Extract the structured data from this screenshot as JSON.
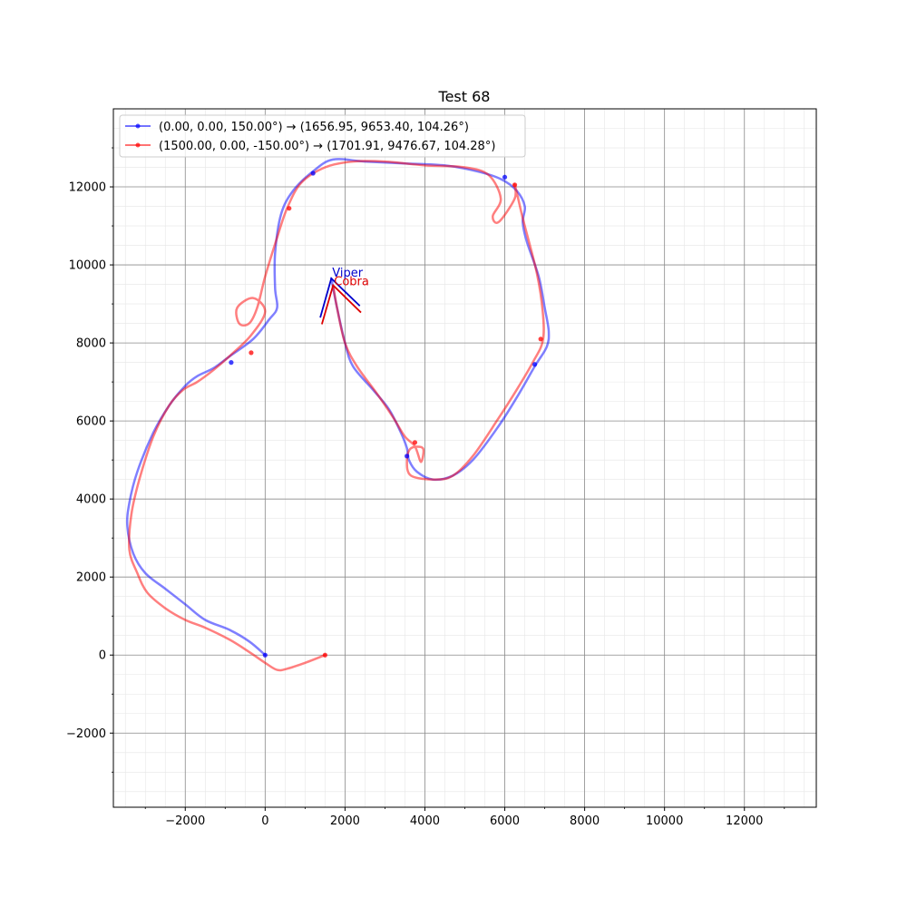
{
  "chart_data": {
    "type": "line",
    "title": "Test 68",
    "xlabel": "",
    "ylabel": "",
    "xlim": [
      -3800,
      13800
    ],
    "ylim": [
      -3900,
      14000
    ],
    "xticks": [
      -2000,
      0,
      2000,
      4000,
      6000,
      8000,
      10000,
      12000
    ],
    "yticks": [
      -2000,
      0,
      2000,
      4000,
      6000,
      8000,
      10000,
      12000
    ],
    "grid": true,
    "legend_position": "top-left",
    "series": [
      {
        "name": "(0.00, 0.00, 150.00°) → (1656.95, 9653.40, 104.26°)",
        "color": "#0000ff",
        "x": [
          0,
          -400,
          -900,
          -1500,
          -2000,
          -2500,
          -3000,
          -3300,
          -3450,
          -3400,
          -3200,
          -2800,
          -2400,
          -2000,
          -1700,
          -1300,
          -900,
          -300,
          100,
          300,
          250,
          250,
          400,
          700,
          1200,
          1700,
          2500,
          3500,
          4500,
          5300,
          5900,
          6300,
          6500,
          6450,
          6550,
          6850,
          7000,
          7100,
          7050,
          6750,
          6300,
          5800,
          5200,
          4700,
          4200,
          3800,
          3600,
          3550,
          3400,
          3100,
          2700,
          2200,
          2000,
          1800,
          1656.95
        ],
        "y": [
          0,
          350,
          650,
          900,
          1300,
          1700,
          2100,
          2600,
          3300,
          3900,
          4700,
          5700,
          6400,
          6900,
          7150,
          7350,
          7650,
          8100,
          8600,
          8900,
          9400,
          10300,
          11300,
          11900,
          12400,
          12700,
          12650,
          12600,
          12550,
          12400,
          12200,
          11900,
          11500,
          11100,
          10600,
          9700,
          8900,
          8300,
          7900,
          7400,
          6600,
          5800,
          5000,
          4600,
          4500,
          4700,
          5000,
          5300,
          5700,
          6300,
          6800,
          7400,
          8000,
          8900,
          9653.4
        ],
        "markers_x": [
          0,
          -850,
          1200,
          6000,
          6750,
          3550
        ],
        "markers_y": [
          0,
          7500,
          12350,
          12250,
          7450,
          5100
        ]
      },
      {
        "name": "(1500.00, 0.00, -150.00°) → (1701.91, 9476.67, 104.28°)",
        "color": "#ff0000",
        "x": [
          1500,
          1000,
          550,
          300,
          0,
          -400,
          -900,
          -1500,
          -2000,
          -2500,
          -2950,
          -3200,
          -3400,
          -3350,
          -3150,
          -2800,
          -2400,
          -2050,
          -1700,
          -1300,
          -850,
          -350,
          0,
          -300,
          -700,
          -650,
          -400,
          -200,
          0,
          300,
          550,
          900,
          1500,
          2200,
          3000,
          4000,
          5000,
          5600,
          5900,
          5700,
          5850,
          6250,
          6250,
          6450,
          6800,
          6950,
          6950,
          6700,
          6300,
          5800,
          5200,
          4700,
          4250,
          3650,
          3550,
          3650,
          3950,
          3900,
          3750,
          3500,
          3200,
          2800,
          2300,
          2000,
          1800,
          1701.91
        ],
        "y": [
          0,
          -200,
          -350,
          -380,
          -200,
          80,
          400,
          700,
          900,
          1200,
          1600,
          2100,
          2700,
          3600,
          4500,
          5600,
          6400,
          6800,
          7000,
          7300,
          7700,
          8200,
          8800,
          9150,
          8900,
          8500,
          8500,
          8900,
          9700,
          10700,
          11450,
          12100,
          12500,
          12650,
          12650,
          12550,
          12500,
          12300,
          11700,
          11250,
          11100,
          11700,
          12050,
          11200,
          9800,
          8800,
          8050,
          7500,
          6800,
          6000,
          5100,
          4600,
          4500,
          4600,
          5000,
          5300,
          5300,
          4950,
          5350,
          5600,
          6100,
          6700,
          7400,
          8000,
          8900,
          9476.67
        ],
        "markers_x": [
          1500,
          -350,
          600,
          6250,
          6900,
          3750
        ],
        "markers_y": [
          0,
          7750,
          11450,
          12050,
          8100,
          5450
        ]
      }
    ],
    "annotations": [
      {
        "text": "Viper",
        "color": "#0000cc",
        "x": 1656.95,
        "y": 9653.4,
        "arrow_left_x": 1380,
        "arrow_left_y": 8650,
        "arrow_right_x": 2370,
        "arrow_right_y": 8950
      },
      {
        "text": "Cobra",
        "color": "#dd0000",
        "x": 1701.91,
        "y": 9476.67,
        "arrow_left_x": 1420,
        "arrow_left_y": 8480,
        "arrow_right_x": 2400,
        "arrow_right_y": 8780
      }
    ]
  }
}
